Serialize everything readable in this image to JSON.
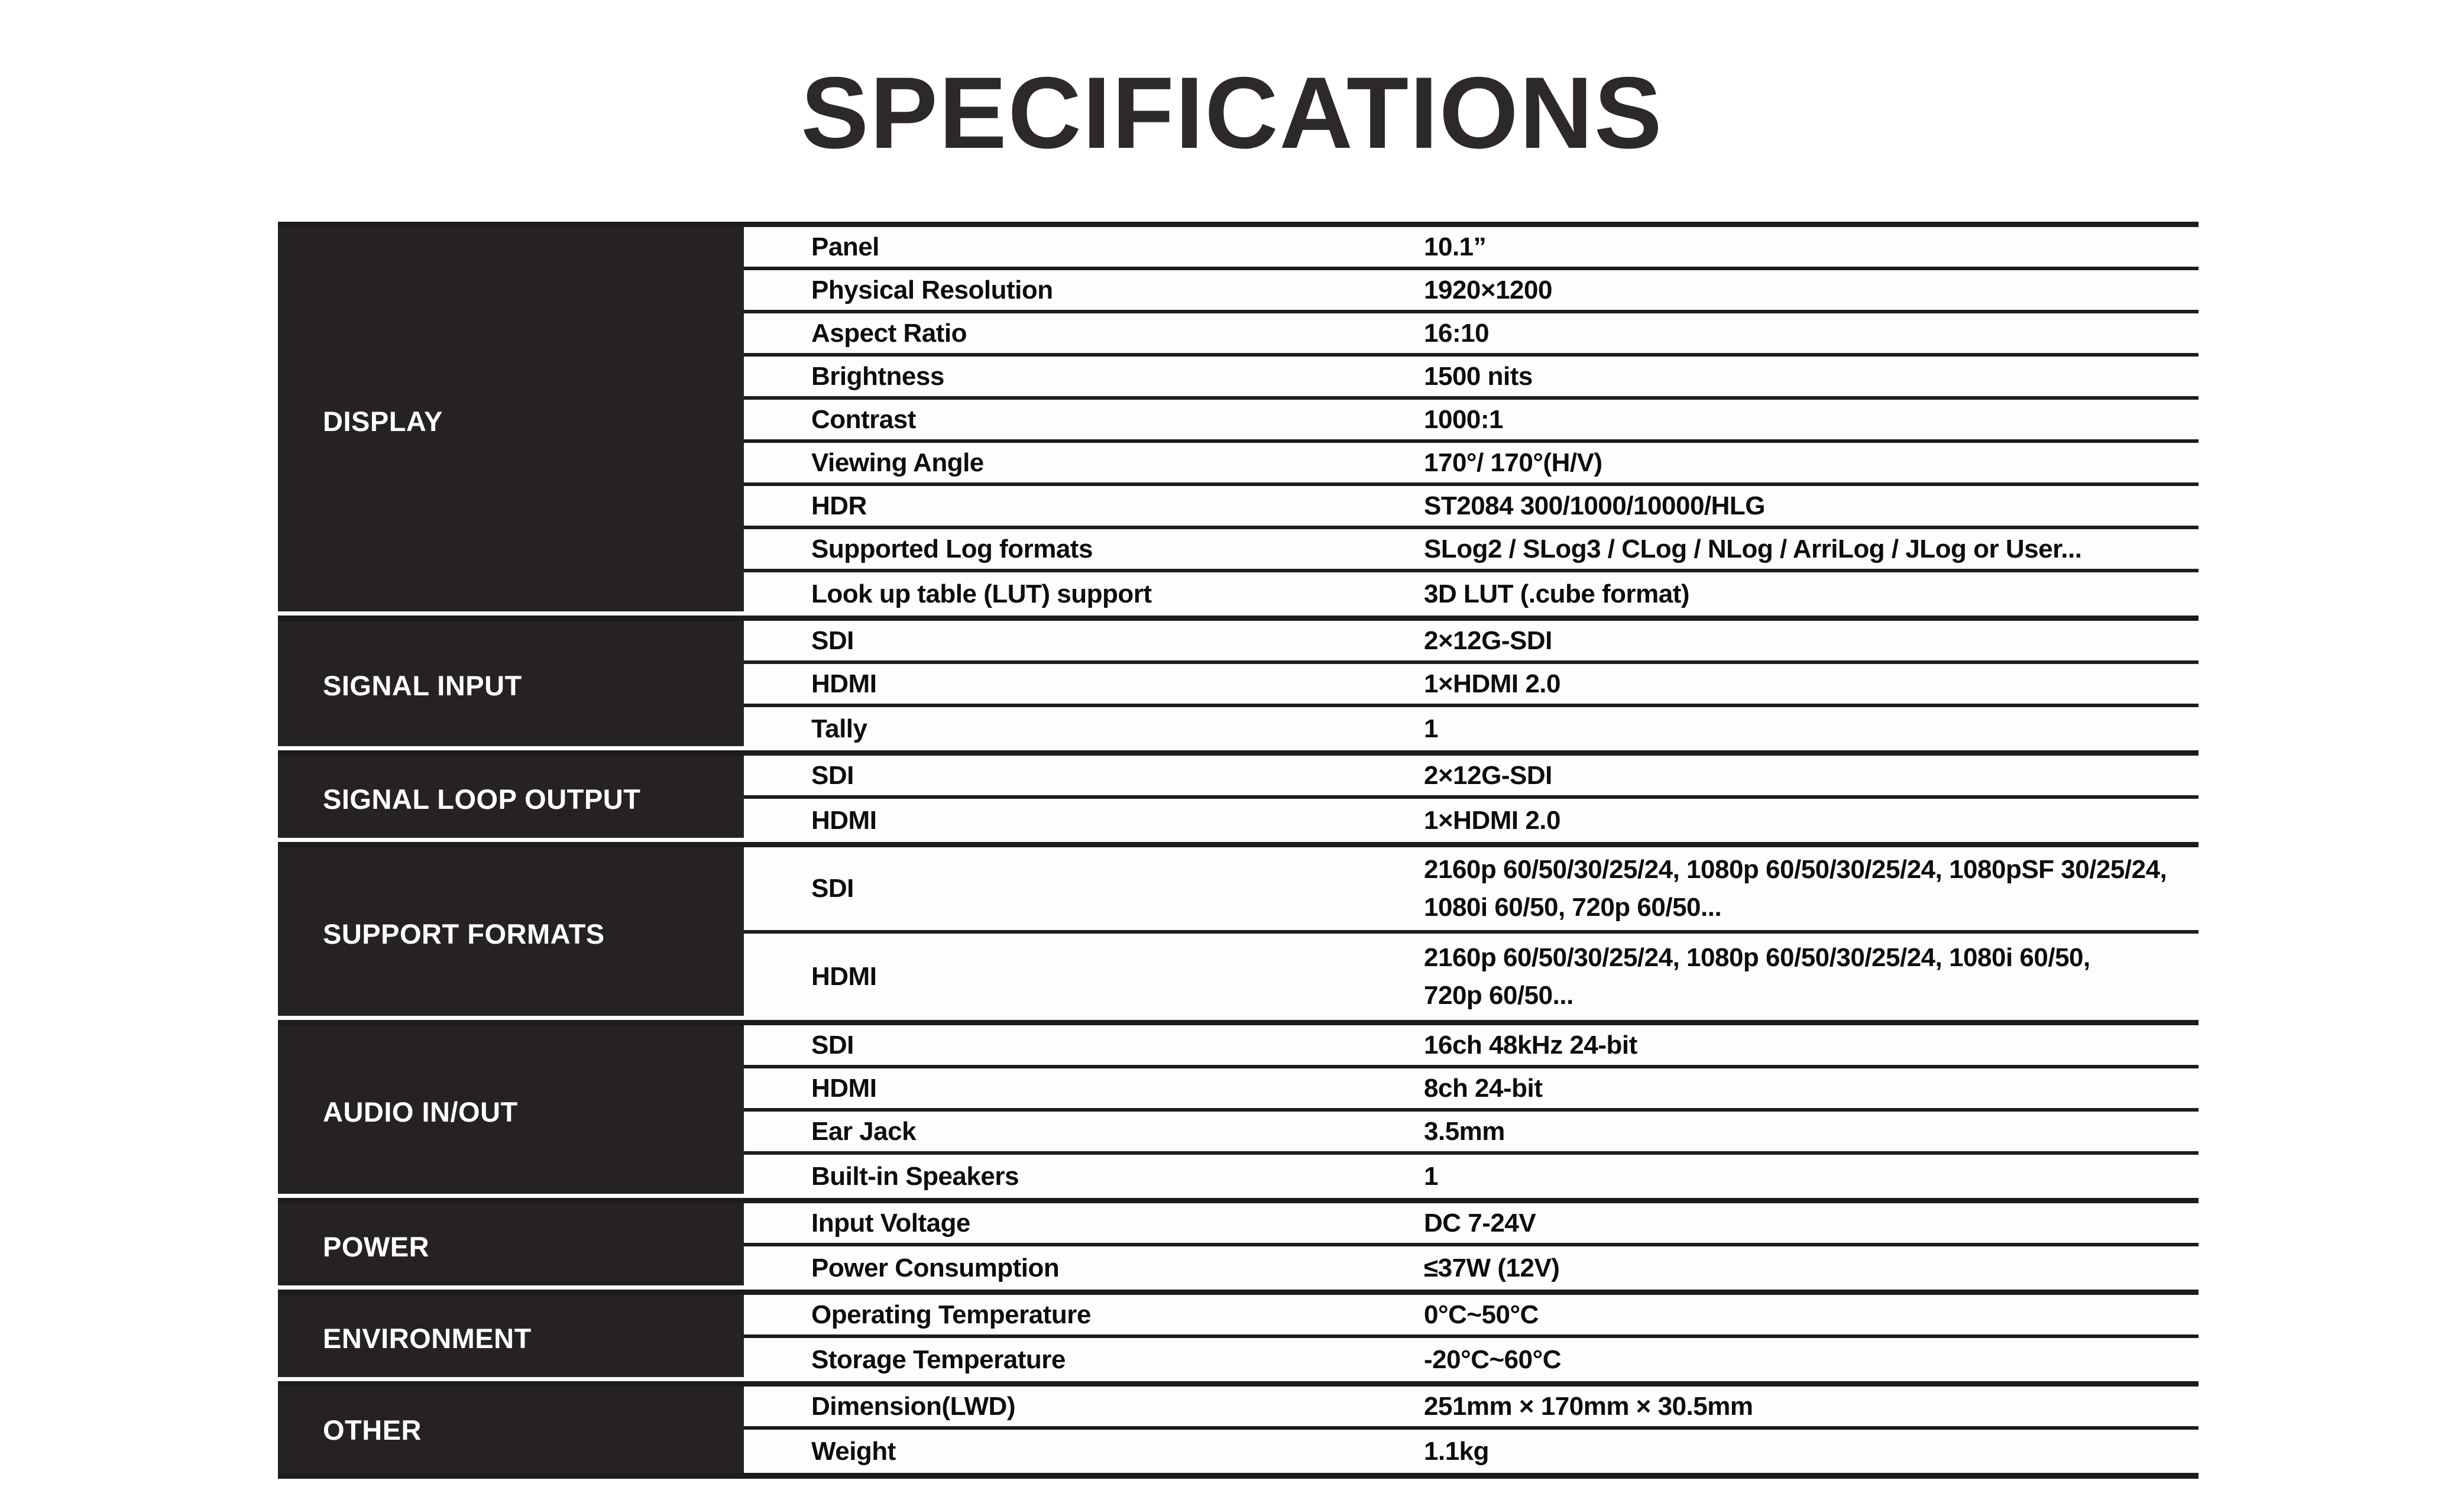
{
  "title": "SPECIFICATIONS",
  "colors": {
    "category_bg": "#262223",
    "line": "#1b1b22",
    "text": "#0d0d0d",
    "category_text": "#ffffff",
    "background": "#ffffff"
  },
  "table": {
    "sections": [
      {
        "category": "DISPLAY",
        "rows": [
          {
            "name": "Panel",
            "value": "10.1”"
          },
          {
            "name": "Physical Resolution",
            "value": "1920×1200"
          },
          {
            "name": "Aspect Ratio",
            "value": "16:10"
          },
          {
            "name": "Brightness",
            "value": "1500 nits"
          },
          {
            "name": "Contrast",
            "value": "1000:1"
          },
          {
            "name": "Viewing Angle",
            "value": "170°/ 170°(H/V)"
          },
          {
            "name": "HDR",
            "value": "ST2084 300/1000/10000/HLG"
          },
          {
            "name": "Supported Log formats",
            "value": "SLog2 / SLog3 / CLog / NLog / ArriLog / JLog or User..."
          },
          {
            "name": "Look up table (LUT) support",
            "value": "3D LUT (.cube format)"
          }
        ]
      },
      {
        "category": "SIGNAL INPUT",
        "rows": [
          {
            "name": "SDI",
            "value": "2×12G-SDI"
          },
          {
            "name": "HDMI",
            "value": "1×HDMI 2.0"
          },
          {
            "name": "Tally",
            "value": "1"
          }
        ]
      },
      {
        "category": "SIGNAL LOOP OUTPUT",
        "rows": [
          {
            "name": "SDI",
            "value": "2×12G-SDI"
          },
          {
            "name": "HDMI",
            "value": "1×HDMI 2.0"
          }
        ]
      },
      {
        "category": "SUPPORT FORMATS",
        "rows": [
          {
            "name": "SDI",
            "value": "2160p 60/50/30/25/24, 1080p 60/50/30/25/24, 1080pSF 30/25/24,\n1080i 60/50, 720p 60/50..."
          },
          {
            "name": "HDMI",
            "value": "2160p 60/50/30/25/24, 1080p 60/50/30/25/24, 1080i 60/50,\n720p 60/50..."
          }
        ]
      },
      {
        "category": "AUDIO IN/OUT",
        "rows": [
          {
            "name": "SDI",
            "value": "16ch 48kHz 24-bit"
          },
          {
            "name": "HDMI",
            "value": "8ch 24-bit"
          },
          {
            "name": "Ear Jack",
            "value": "3.5mm"
          },
          {
            "name": "Built-in Speakers",
            "value": "1"
          }
        ]
      },
      {
        "category": "POWER",
        "rows": [
          {
            "name": "Input Voltage",
            "value": "DC 7-24V"
          },
          {
            "name": "Power Consumption",
            "value": "≤37W (12V)"
          }
        ]
      },
      {
        "category": "ENVIRONMENT",
        "rows": [
          {
            "name": "Operating Temperature",
            "value": "0°C~50°C"
          },
          {
            "name": "Storage Temperature",
            "value": "-20°C~60°C"
          }
        ]
      },
      {
        "category": "OTHER",
        "rows": [
          {
            "name": "Dimension(LWD)",
            "value": "251mm × 170mm × 30.5mm"
          },
          {
            "name": "Weight",
            "value": "1.1kg"
          }
        ]
      }
    ]
  }
}
